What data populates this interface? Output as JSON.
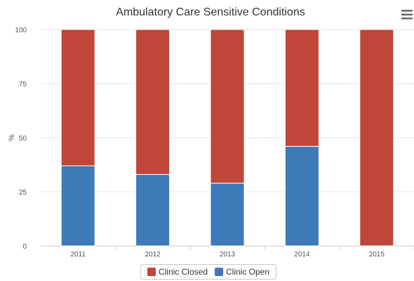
{
  "chart_data": {
    "type": "bar",
    "stacked": true,
    "title": "Ambulatory Care Sensitive Conditions",
    "ylabel": "%",
    "xlabel": "",
    "categories": [
      "2011",
      "2012",
      "2013",
      "2014",
      "2015"
    ],
    "series": [
      {
        "name": "Clinic Open",
        "color": "#3d7ab8",
        "values": [
          37,
          33,
          29,
          46,
          0
        ]
      },
      {
        "name": "Clinic Closed",
        "color": "#c0463a",
        "values": [
          63,
          67,
          71,
          54,
          100
        ]
      }
    ],
    "ylim": [
      0,
      100
    ],
    "yticks": [
      "0",
      "25",
      "50",
      "75",
      "100"
    ],
    "grid": true,
    "legend_position": "bottom-center"
  },
  "legend": {
    "items": [
      {
        "label": "Clinic Closed",
        "color": "#c0463a"
      },
      {
        "label": "Clinic Open",
        "color": "#3d7ab8"
      }
    ]
  },
  "menu_icon": "hamburger-menu-icon"
}
